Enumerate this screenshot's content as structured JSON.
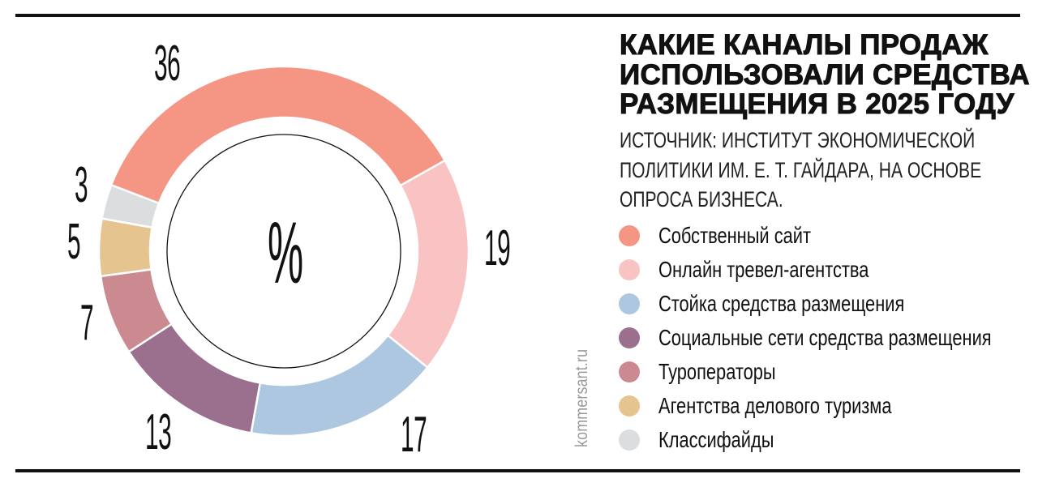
{
  "header": {
    "title_lines": [
      "КАКИЕ КАНАЛЫ ПРОДАЖ",
      "ИСПОЛЬЗОВАЛИ СРЕДСТВА",
      "РАЗМЕЩЕНИЯ В 2025 ГОДУ"
    ],
    "source_lines": [
      "ИСТОЧНИК: ИНСТИТУТ ЭКОНОМИЧЕСКОЙ",
      "ПОЛИТИКИ ИМ. Е. Т. ГАЙДАРА, НА ОСНОВЕ",
      "ОПРОСА БИЗНЕСА."
    ]
  },
  "center_label": "%",
  "watermark": "kommersant.ru",
  "legend": [
    {
      "label": "Собственный сайт",
      "color": "#f59583"
    },
    {
      "label": "Онлайн тревел-агентства",
      "color": "#f8c3c2"
    },
    {
      "label": "Стойка средства размещения",
      "color": "#adc7e0"
    },
    {
      "label": "Социальные сети средства размещения",
      "color": "#9b6f8e"
    },
    {
      "label": "Туроператоры",
      "color": "#cb8a90"
    },
    {
      "label": "Агентства делового туризма",
      "color": "#e6c48f"
    },
    {
      "label": "Классифайды",
      "color": "#dcdddf"
    }
  ],
  "value_labels": [
    "36",
    "19",
    "17",
    "13",
    "7",
    "5",
    "3"
  ],
  "chart_data": {
    "type": "pie",
    "variant": "donut",
    "title": "Какие каналы продаж использовали средства размещения в 2025 году",
    "subtitle": "Источник: Институт экономической политики им. Е. Т. Гайдара, на основе опроса бизнеса.",
    "unit": "%",
    "categories": [
      "Собственный сайт",
      "Онлайн тревел-агентства",
      "Стойка средства размещения",
      "Социальные сети средства размещения",
      "Туроператоры",
      "Агентства делового туризма",
      "Классифайды"
    ],
    "values": [
      36,
      19,
      17,
      13,
      7,
      5,
      3
    ],
    "colors": [
      "#f59583",
      "#f8c3c2",
      "#adc7e0",
      "#9b6f8e",
      "#cb8a90",
      "#e6c48f",
      "#dcdddf"
    ],
    "start_angle_deg": -69,
    "direction": "clockwise",
    "legend_position": "right"
  }
}
